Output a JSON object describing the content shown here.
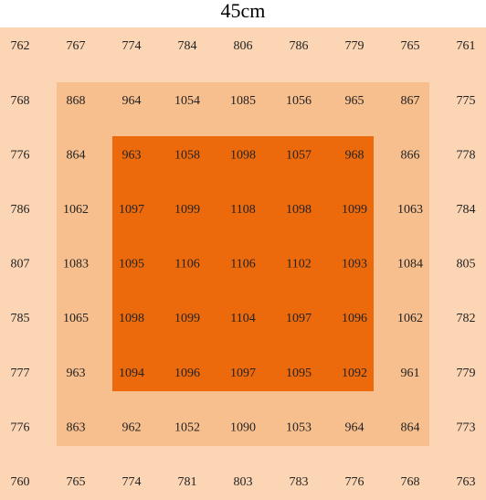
{
  "title": "45cm",
  "table": {
    "rows": [
      [
        762,
        767,
        774,
        784,
        806,
        786,
        779,
        765,
        761
      ],
      [
        768,
        868,
        964,
        1054,
        1085,
        1056,
        965,
        867,
        775
      ],
      [
        776,
        864,
        963,
        1058,
        1098,
        1057,
        968,
        866,
        778
      ],
      [
        786,
        1062,
        1097,
        1099,
        1108,
        1098,
        1099,
        1063,
        784
      ],
      [
        807,
        1083,
        1095,
        1106,
        1106,
        1102,
        1093,
        1084,
        805
      ],
      [
        785,
        1065,
        1098,
        1099,
        1104,
        1097,
        1096,
        1062,
        782
      ],
      [
        777,
        963,
        1094,
        1096,
        1097,
        1095,
        1092,
        961,
        779
      ],
      [
        776,
        863,
        962,
        1052,
        1090,
        1053,
        964,
        864,
        773
      ],
      [
        760,
        765,
        774,
        781,
        803,
        783,
        776,
        768,
        763
      ]
    ]
  }
}
